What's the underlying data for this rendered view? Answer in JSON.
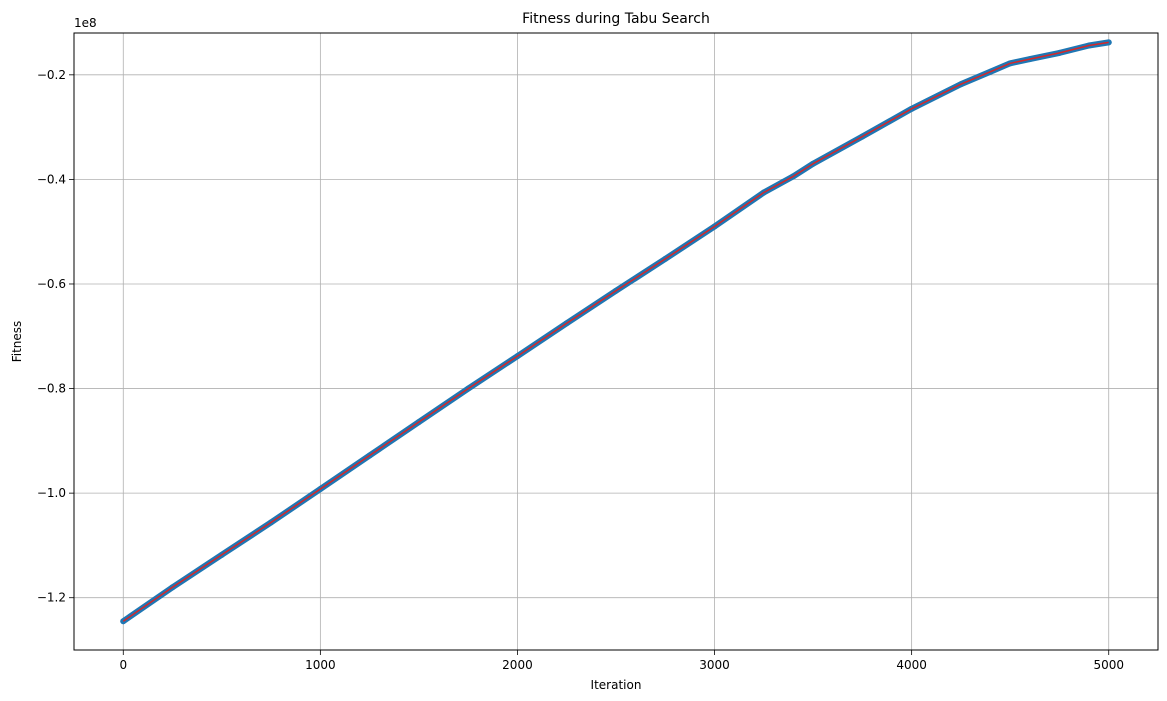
{
  "chart_data": {
    "type": "line",
    "title": "Fitness during Tabu Search",
    "xlabel": "Iteration",
    "ylabel": "Fitness",
    "y_offset_label": "1e8",
    "xlim": [
      -250,
      5250
    ],
    "ylim": [
      -1.3,
      -0.12
    ],
    "x_ticks": [
      0,
      1000,
      2000,
      3000,
      4000,
      5000
    ],
    "x_tick_labels": [
      "0",
      "1000",
      "2000",
      "3000",
      "4000",
      "5000"
    ],
    "y_ticks": [
      -1.2,
      -1.0,
      -0.8,
      -0.6,
      -0.4,
      -0.2
    ],
    "y_tick_labels": [
      "−1.2",
      "−1.0",
      "−0.8",
      "−0.6",
      "−0.4",
      "−0.2"
    ],
    "grid": true,
    "series": [
      {
        "color": "#1f77b4",
        "marker": "circle",
        "x": [
          0,
          250,
          500,
          750,
          1000,
          1250,
          1500,
          1750,
          2000,
          2250,
          2500,
          2750,
          3000,
          3250,
          3400,
          3500,
          3750,
          4000,
          4250,
          4400,
          4500,
          4600,
          4750,
          4900,
          5000
        ],
        "y": [
          -1.245,
          -1.18,
          -1.118,
          -1.056,
          -0.992,
          -0.928,
          -0.864,
          -0.8,
          -0.738,
          -0.675,
          -0.613,
          -0.552,
          -0.49,
          -0.425,
          -0.394,
          -0.37,
          -0.318,
          -0.265,
          -0.218,
          -0.194,
          -0.178,
          -0.17,
          -0.158,
          -0.144,
          -0.138
        ]
      },
      {
        "color": "#d62728",
        "marker": "none",
        "x": [
          0,
          250,
          500,
          750,
          1000,
          1250,
          1500,
          1750,
          2000,
          2250,
          2500,
          2750,
          3000,
          3250,
          3400,
          3500,
          3750,
          4000,
          4250,
          4400,
          4500,
          4600,
          4750,
          4900,
          5000
        ],
        "y": [
          -1.245,
          -1.18,
          -1.118,
          -1.056,
          -0.992,
          -0.928,
          -0.864,
          -0.8,
          -0.738,
          -0.675,
          -0.613,
          -0.552,
          -0.49,
          -0.425,
          -0.394,
          -0.37,
          -0.318,
          -0.265,
          -0.218,
          -0.194,
          -0.178,
          -0.17,
          -0.158,
          -0.144,
          -0.138
        ]
      }
    ]
  }
}
